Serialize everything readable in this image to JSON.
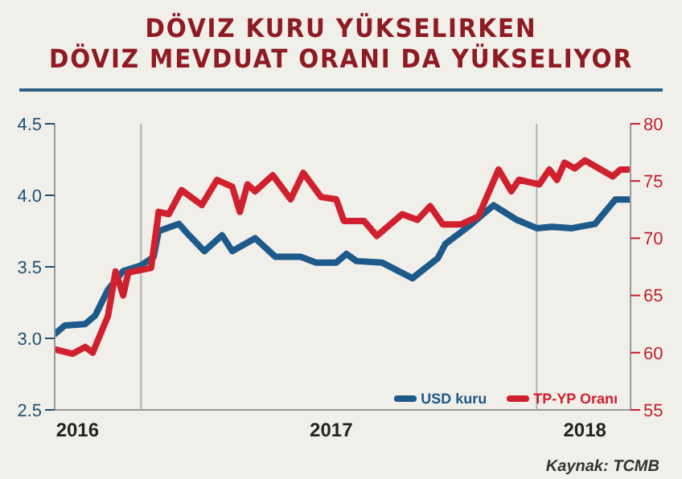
{
  "chart_data": {
    "type": "line",
    "title": "DÖVIZ KURU YÜKSELIRKEN\nDÖVIZ MEVDUAT ORANI DA YÜKSELIYOR",
    "annotations": [
      "Kaynak: TCMB"
    ],
    "xlim": [
      2015.91,
      2018.18
    ],
    "xticks": [
      2016,
      2017,
      2018
    ],
    "ylim": [
      2.5,
      4.5
    ],
    "yticks": [
      2.5,
      {
        "value": 3,
        "label": "3.0"
      },
      3.5,
      {
        "value": 4,
        "label": "4.0"
      },
      4.5
    ],
    "y2lim": [
      55,
      80
    ],
    "y2ticks": [
      55,
      60,
      65,
      70,
      75,
      80
    ],
    "legend": "bottom right",
    "marker": "none",
    "line_style": "solid",
    "ref_lines": [
      {
        "axis": "x",
        "value": 2016.25,
        "color": "#b0b0b0"
      },
      {
        "axis": "x",
        "value": 2017.81,
        "color": "#b0b0b0"
      }
    ],
    "series": [
      {
        "name": "USD kuru",
        "color": "#1d5a8a",
        "x": [
          2015.91,
          2015.95,
          2016.03,
          2016.07,
          2016.12,
          2016.18,
          2016.25,
          2016.3,
          2016.32,
          2016.4,
          2016.44,
          2016.5,
          2016.57,
          2016.61,
          2016.7,
          2016.78,
          2016.88,
          2016.94,
          2017.02,
          2017.06,
          2017.1,
          2017.2,
          2017.32,
          2017.42,
          2017.45,
          2017.54,
          2017.64,
          2017.73,
          2017.81,
          2017.87,
          2017.95,
          2018.04,
          2018.12,
          2018.17
        ],
        "values": [
          3.03,
          3.09,
          3.1,
          3.16,
          3.34,
          3.47,
          3.51,
          3.57,
          3.75,
          3.8,
          3.72,
          3.61,
          3.72,
          3.61,
          3.7,
          3.57,
          3.57,
          3.53,
          3.53,
          3.59,
          3.54,
          3.53,
          3.42,
          3.56,
          3.66,
          3.78,
          3.93,
          3.83,
          3.77,
          3.78,
          3.77,
          3.8,
          3.97,
          3.97
        ]
      },
      {
        "name": "TP-YP Oranı",
        "color": "#d0202e",
        "axis": "y2",
        "x": [
          2015.91,
          2015.98,
          2016.03,
          2016.06,
          2016.12,
          2016.15,
          2016.18,
          2016.2,
          2016.29,
          2016.32,
          2016.36,
          2016.41,
          2016.49,
          2016.55,
          2016.61,
          2016.64,
          2016.67,
          2016.7,
          2016.77,
          2016.84,
          2016.89,
          2016.96,
          2017.02,
          2017.05,
          2017.13,
          2017.18,
          2017.28,
          2017.34,
          2017.39,
          2017.44,
          2017.51,
          2017.58,
          2017.66,
          2017.71,
          2017.74,
          2017.82,
          2017.86,
          2017.89,
          2017.92,
          2017.96,
          2018.0,
          2018.11,
          2018.14,
          2018.17
        ],
        "values": [
          60.3,
          59.9,
          60.5,
          60.0,
          63.2,
          67.1,
          65.0,
          67.0,
          67.4,
          72.3,
          72.1,
          74.2,
          72.9,
          75.1,
          74.5,
          72.3,
          74.7,
          74.1,
          75.5,
          73.4,
          75.7,
          73.6,
          73.4,
          71.5,
          71.5,
          70.2,
          72.1,
          71.6,
          72.8,
          71.2,
          71.2,
          71.9,
          76.0,
          74.1,
          75.1,
          74.7,
          76.0,
          75.1,
          76.6,
          76.1,
          76.8,
          75.4,
          76.0,
          76.0
        ]
      }
    ]
  }
}
